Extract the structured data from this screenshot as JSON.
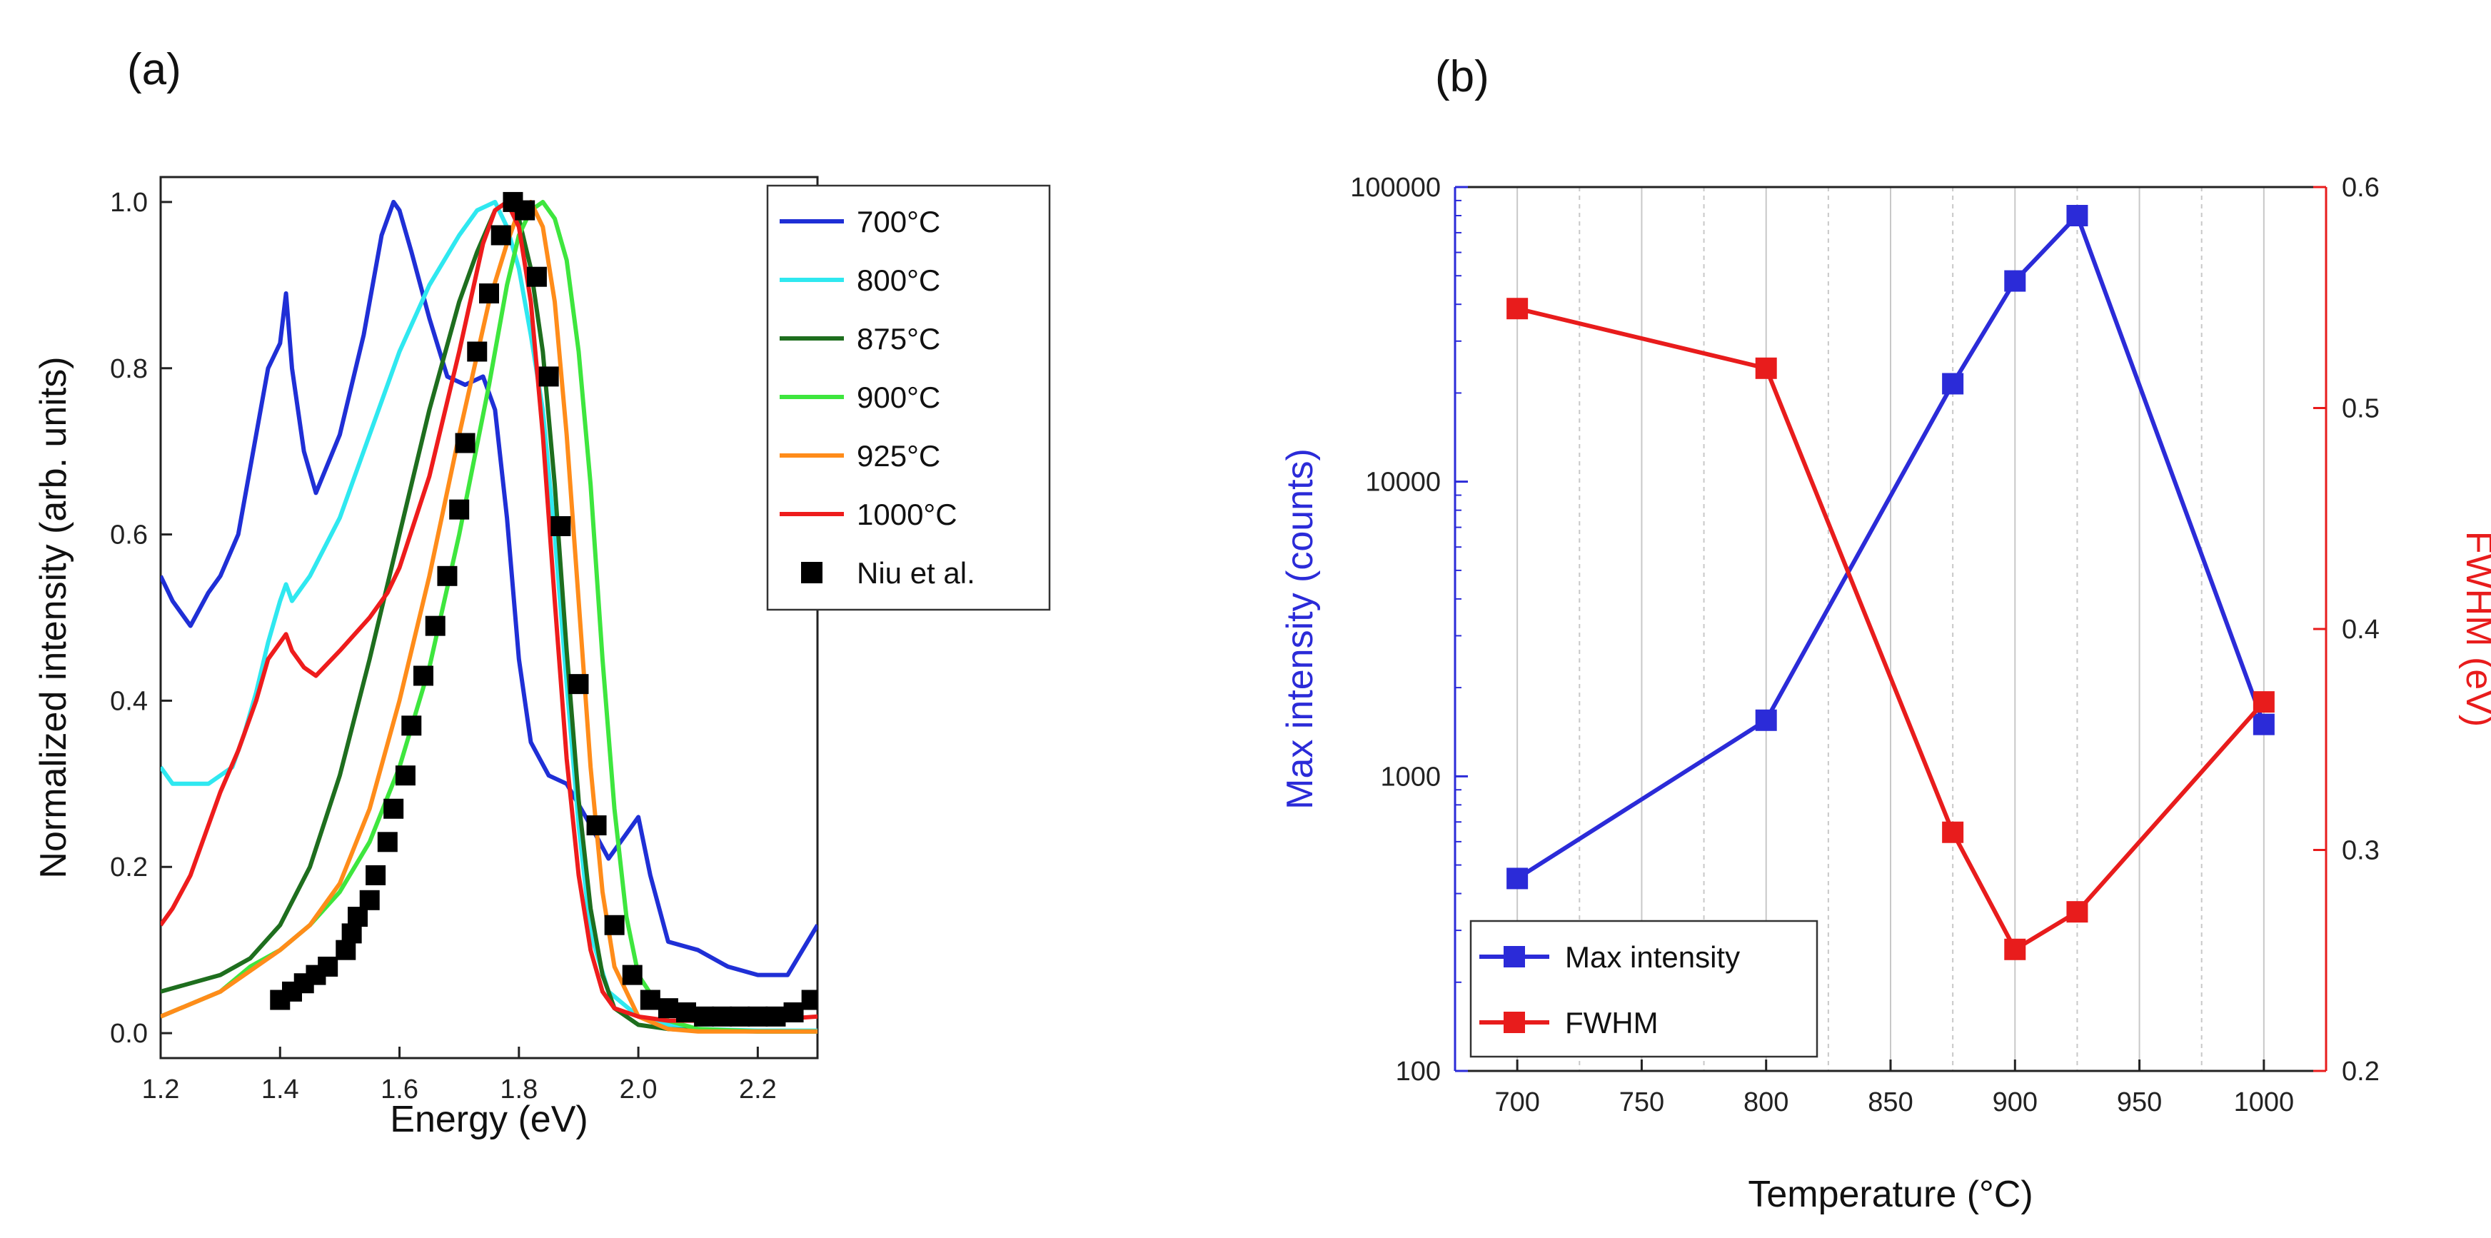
{
  "chart_data": [
    {
      "panel": "(a)",
      "type": "line",
      "xlabel": "Energy (eV)",
      "ylabel": "Normalized intensity (arb. units)",
      "xlim": [
        1.2,
        2.3
      ],
      "ylim": [
        -0.03,
        1.03
      ],
      "xticks": [
        1.2,
        1.4,
        1.6,
        1.8,
        2.0,
        2.2
      ],
      "yticks": [
        0.0,
        0.2,
        0.4,
        0.6,
        0.8,
        1.0
      ],
      "xtick_labels": [
        "1.2",
        "1.4",
        "1.6",
        "1.8",
        "2.0",
        "2.2"
      ],
      "ytick_labels": [
        "0.0",
        "0.2",
        "0.4",
        "0.6",
        "0.8",
        "1.0"
      ],
      "legend_position": "top-right",
      "series": [
        {
          "name": "700°C",
          "color": "#1f2fd6",
          "x": [
            1.2,
            1.22,
            1.25,
            1.28,
            1.3,
            1.33,
            1.36,
            1.38,
            1.4,
            1.41,
            1.42,
            1.44,
            1.46,
            1.5,
            1.54,
            1.57,
            1.59,
            1.6,
            1.62,
            1.65,
            1.68,
            1.71,
            1.74,
            1.76,
            1.78,
            1.8,
            1.82,
            1.85,
            1.88,
            1.92,
            1.95,
            1.98,
            2.0,
            2.02,
            2.05,
            2.1,
            2.15,
            2.2,
            2.25,
            2.3
          ],
          "y": [
            0.55,
            0.52,
            0.49,
            0.53,
            0.55,
            0.6,
            0.72,
            0.8,
            0.83,
            0.89,
            0.8,
            0.7,
            0.65,
            0.72,
            0.84,
            0.96,
            1.0,
            0.99,
            0.94,
            0.86,
            0.79,
            0.78,
            0.79,
            0.75,
            0.62,
            0.45,
            0.35,
            0.31,
            0.3,
            0.25,
            0.21,
            0.24,
            0.26,
            0.19,
            0.11,
            0.1,
            0.08,
            0.07,
            0.07,
            0.13
          ]
        },
        {
          "name": "800°C",
          "color": "#2fe8f0",
          "x": [
            1.2,
            1.22,
            1.25,
            1.28,
            1.3,
            1.32,
            1.34,
            1.36,
            1.38,
            1.4,
            1.41,
            1.42,
            1.45,
            1.5,
            1.55,
            1.6,
            1.65,
            1.7,
            1.73,
            1.76,
            1.78,
            1.8,
            1.82,
            1.84,
            1.86,
            1.88,
            1.9,
            1.92,
            1.95,
            2.0,
            2.05,
            2.1,
            2.2,
            2.3
          ],
          "y": [
            0.32,
            0.3,
            0.3,
            0.3,
            0.31,
            0.32,
            0.36,
            0.41,
            0.47,
            0.52,
            0.54,
            0.52,
            0.55,
            0.62,
            0.72,
            0.82,
            0.9,
            0.96,
            0.99,
            1.0,
            0.97,
            0.92,
            0.84,
            0.75,
            0.6,
            0.42,
            0.25,
            0.12,
            0.05,
            0.02,
            0.01,
            0.005,
            0.003,
            0.003
          ]
        },
        {
          "name": "875°C",
          "color": "#1e6e1e",
          "x": [
            1.2,
            1.3,
            1.35,
            1.4,
            1.45,
            1.5,
            1.55,
            1.6,
            1.65,
            1.7,
            1.73,
            1.76,
            1.78,
            1.8,
            1.82,
            1.84,
            1.86,
            1.88,
            1.9,
            1.92,
            1.94,
            1.96,
            2.0,
            2.05,
            2.1,
            2.2,
            2.3
          ],
          "y": [
            0.05,
            0.07,
            0.09,
            0.13,
            0.2,
            0.31,
            0.45,
            0.6,
            0.75,
            0.88,
            0.94,
            0.99,
            1.0,
            0.98,
            0.92,
            0.82,
            0.66,
            0.46,
            0.28,
            0.15,
            0.07,
            0.03,
            0.01,
            0.005,
            0.003,
            0.002,
            0.002
          ]
        },
        {
          "name": "900°C",
          "color": "#3ee63e",
          "x": [
            1.2,
            1.3,
            1.35,
            1.4,
            1.45,
            1.5,
            1.55,
            1.6,
            1.65,
            1.7,
            1.75,
            1.78,
            1.8,
            1.82,
            1.84,
            1.86,
            1.88,
            1.9,
            1.92,
            1.94,
            1.96,
            1.98,
            2.0,
            2.05,
            2.1,
            2.2,
            2.3
          ],
          "y": [
            0.02,
            0.05,
            0.08,
            0.1,
            0.13,
            0.17,
            0.23,
            0.32,
            0.44,
            0.6,
            0.78,
            0.9,
            0.96,
            0.99,
            1.0,
            0.98,
            0.93,
            0.82,
            0.66,
            0.45,
            0.27,
            0.14,
            0.07,
            0.015,
            0.005,
            0.002,
            0.002
          ]
        },
        {
          "name": "925°C",
          "color": "#ff8c1a",
          "x": [
            1.2,
            1.3,
            1.4,
            1.45,
            1.5,
            1.55,
            1.6,
            1.65,
            1.7,
            1.75,
            1.78,
            1.8,
            1.82,
            1.84,
            1.86,
            1.88,
            1.9,
            1.92,
            1.94,
            1.96,
            2.0,
            2.05,
            2.1,
            2.2,
            2.3
          ],
          "y": [
            0.02,
            0.05,
            0.1,
            0.13,
            0.18,
            0.27,
            0.4,
            0.55,
            0.72,
            0.88,
            0.95,
            0.99,
            1.0,
            0.97,
            0.88,
            0.72,
            0.52,
            0.32,
            0.17,
            0.08,
            0.02,
            0.005,
            0.002,
            0.002,
            0.002
          ]
        },
        {
          "name": "1000°C",
          "color": "#ee1c1c",
          "x": [
            1.2,
            1.22,
            1.25,
            1.28,
            1.3,
            1.33,
            1.36,
            1.38,
            1.4,
            1.41,
            1.42,
            1.44,
            1.46,
            1.5,
            1.55,
            1.58,
            1.6,
            1.65,
            1.7,
            1.74,
            1.76,
            1.78,
            1.8,
            1.82,
            1.84,
            1.86,
            1.88,
            1.9,
            1.92,
            1.94,
            1.96,
            2.0,
            2.05,
            2.1,
            2.2,
            2.3
          ],
          "y": [
            0.13,
            0.15,
            0.19,
            0.25,
            0.29,
            0.34,
            0.4,
            0.45,
            0.47,
            0.48,
            0.46,
            0.44,
            0.43,
            0.46,
            0.5,
            0.53,
            0.56,
            0.67,
            0.82,
            0.95,
            0.99,
            1.0,
            0.97,
            0.88,
            0.72,
            0.52,
            0.33,
            0.19,
            0.1,
            0.05,
            0.03,
            0.02,
            0.015,
            0.015,
            0.015,
            0.02
          ]
        },
        {
          "name": "Niu et al.",
          "color": "#000000",
          "marker": "square",
          "x": [
            1.4,
            1.42,
            1.44,
            1.46,
            1.48,
            1.51,
            1.52,
            1.53,
            1.55,
            1.56,
            1.58,
            1.59,
            1.61,
            1.62,
            1.64,
            1.66,
            1.68,
            1.7,
            1.71,
            1.73,
            1.75,
            1.77,
            1.79,
            1.81,
            1.83,
            1.85,
            1.87,
            1.9,
            1.93,
            1.96,
            1.99,
            2.02,
            2.05,
            2.08,
            2.11,
            2.14,
            2.17,
            2.2,
            2.23,
            2.26,
            2.29
          ],
          "y": [
            0.04,
            0.05,
            0.06,
            0.07,
            0.08,
            0.1,
            0.12,
            0.14,
            0.16,
            0.19,
            0.23,
            0.27,
            0.31,
            0.37,
            0.43,
            0.49,
            0.55,
            0.63,
            0.71,
            0.82,
            0.89,
            0.96,
            1.0,
            0.99,
            0.91,
            0.79,
            0.61,
            0.42,
            0.25,
            0.13,
            0.07,
            0.04,
            0.03,
            0.025,
            0.02,
            0.02,
            0.02,
            0.02,
            0.02,
            0.025,
            0.04
          ]
        }
      ]
    },
    {
      "panel": "(b)",
      "type": "line",
      "xlabel": "Temperature (°C)",
      "ylabel": "Max intensity (counts)",
      "y2label": "FWHM (eV)",
      "xlim": [
        675,
        1025
      ],
      "ylim": [
        100,
        100000
      ],
      "yscale": "log",
      "y2lim": [
        0.2,
        0.6
      ],
      "xticks": [
        700,
        750,
        800,
        850,
        900,
        950,
        1000
      ],
      "xtick_labels": [
        "700",
        "750",
        "800",
        "850",
        "900",
        "950",
        "1000"
      ],
      "yticks": [
        100,
        1000,
        10000,
        100000
      ],
      "ytick_labels": [
        "100",
        "1000",
        "10000",
        "100000"
      ],
      "y2ticks": [
        0.2,
        0.3,
        0.4,
        0.5,
        0.6
      ],
      "y2tick_labels": [
        "0.2",
        "0.3",
        "0.4",
        "0.5",
        "0.6"
      ],
      "vertical_grid": true,
      "legend_position": "bottom-left",
      "left_axis_color": "#2b2bd8",
      "right_axis_color": "#e81c1c",
      "series": [
        {
          "name": "Max intensity",
          "axis": "left",
          "color": "#2b2bd8",
          "marker": "square",
          "x": [
            700,
            800,
            875,
            900,
            925,
            1000
          ],
          "y": [
            450,
            1550,
            21500,
            48000,
            80000,
            1500
          ]
        },
        {
          "name": "FWHM",
          "axis": "right",
          "color": "#e81c1c",
          "marker": "square",
          "x": [
            700,
            800,
            875,
            900,
            925,
            1000
          ],
          "y": [
            0.545,
            0.518,
            0.308,
            0.255,
            0.272,
            0.367
          ]
        }
      ]
    }
  ]
}
